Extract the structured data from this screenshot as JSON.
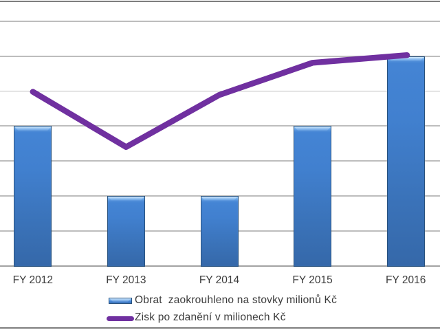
{
  "chart_data": {
    "type": "combo",
    "categories": [
      "FY 2012",
      "FY 2013",
      "FY 2014",
      "FY 2015",
      "FY 2016"
    ],
    "series": [
      {
        "name": "Obrat  zaokrouhleno na stovky milionů Kč",
        "type": "bar",
        "values": [
          400,
          200,
          200,
          400,
          600
        ],
        "color": "#3f7ac6"
      },
      {
        "name": "Zisk po zdanění v milionech Kč",
        "type": "line",
        "values": [
          498,
          340,
          489,
          581,
          603
        ],
        "color": "#7030a0"
      }
    ],
    "title": "",
    "xlabel": "",
    "ylabel": "",
    "ylim": [
      0,
      760
    ],
    "y_gridline_interval": 100,
    "gridlines_visible": true,
    "y_axis_labels_visible": false,
    "legend_position": "bottom"
  },
  "colors": {
    "bar_fill": "#3f7ac6",
    "bar_outline": "#28517d",
    "line_stroke": "#7030a0",
    "gridline": "#bdbdbd",
    "axis_line": "#a2a2a2",
    "chart_border": "#7e7e7e",
    "text": "#3b3b3b",
    "background": "#ffffff"
  }
}
